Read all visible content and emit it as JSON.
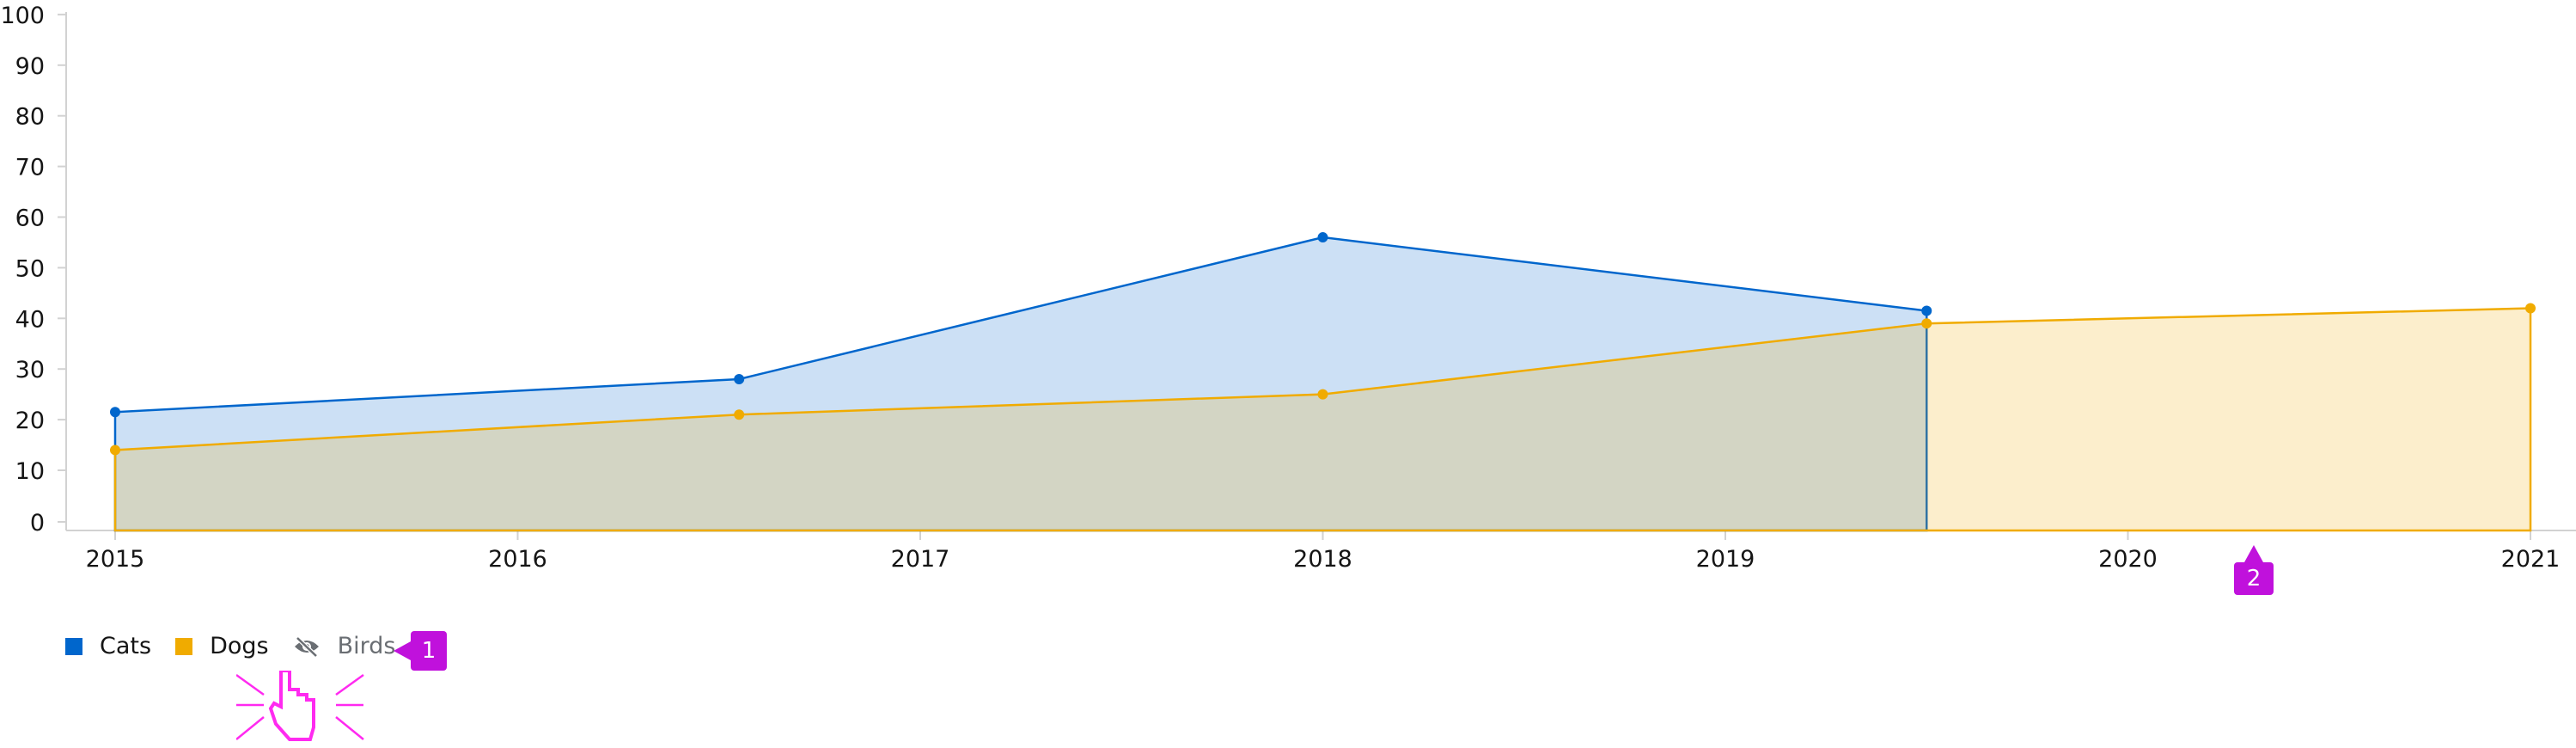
{
  "chart_data": {
    "type": "area",
    "title": "",
    "xlabel": "",
    "ylabel": "",
    "xlim": [
      2015,
      2021
    ],
    "ylim": [
      0,
      100
    ],
    "x_ticks": [
      "2015",
      "2016",
      "2017",
      "2018",
      "2019",
      "2020",
      "2021"
    ],
    "y_ticks": [
      "0",
      "10",
      "20",
      "30",
      "40",
      "50",
      "60",
      "70",
      "80",
      "90",
      "100"
    ],
    "grid": false,
    "legend_placement": "bottom-left",
    "series": [
      {
        "name": "Cats",
        "color": "#0066cc",
        "fill": "#cce0f5",
        "visible": true,
        "x": [
          2015,
          2016.55,
          2018,
          2019.5
        ],
        "values": [
          21.5,
          28,
          56,
          41.5
        ]
      },
      {
        "name": "Dogs",
        "color": "#f0ab00",
        "fill": "#fbeccb",
        "visible": true,
        "x": [
          2015,
          2016.55,
          2018,
          2019.5,
          2021
        ],
        "values": [
          14,
          21,
          25,
          39,
          42
        ]
      },
      {
        "name": "Birds",
        "visible": false,
        "x": [],
        "values": []
      }
    ]
  },
  "legend": {
    "items": [
      {
        "label": "Cats",
        "color": "#0066cc",
        "icon": "square"
      },
      {
        "label": "Dogs",
        "color": "#f0ab00",
        "icon": "square"
      },
      {
        "label": "Birds",
        "color": "#6a6e73",
        "icon": "eye-slash-icon"
      }
    ]
  },
  "annotations": {
    "badge_1": "1",
    "badge_2": "2",
    "accent": "#c011dc",
    "cursor": "hand-pointer-icon"
  }
}
